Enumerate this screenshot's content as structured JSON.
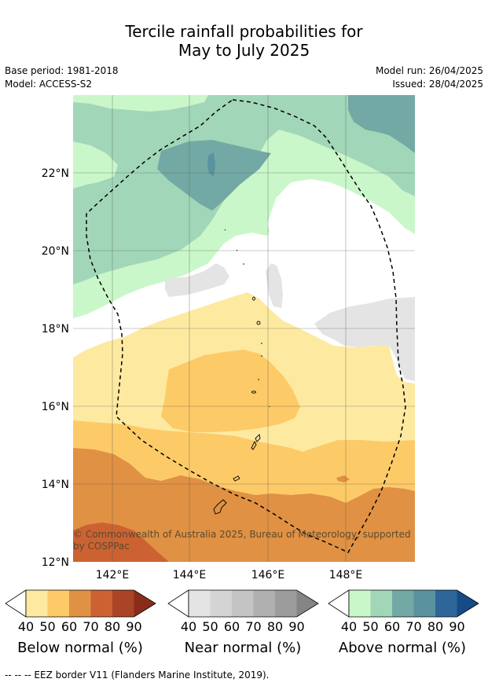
{
  "title": {
    "line1": "Tercile rainfall probabilities for",
    "line2": "May to July 2025"
  },
  "meta": {
    "base_period": "Base period: 1981-2018",
    "model": "Model: ACCESS-S2",
    "model_run": "Model run: 26/04/2025",
    "issued": "Issued: 28/04/2025"
  },
  "map": {
    "lat_labels": [
      "22°N",
      "20°N",
      "18°N",
      "16°N",
      "14°N",
      "12°N"
    ],
    "lon_labels": [
      "142°E",
      "144°E",
      "146°E",
      "148°E"
    ],
    "copyright": [
      "© Commonwealth of Australia 2025, Bureau of Meteorology, supported",
      "by COSPPac"
    ],
    "colors": {
      "below_40": "#fdeaa0",
      "below_50": "#fdca68",
      "below_60": "#e09143",
      "below_70": "#cc6232",
      "below_80": "#a94526",
      "below_90": "#8a2c1b",
      "near_40": "#e4e4e4",
      "near_50": "#d4d4d4",
      "near_60": "#c4c4c4",
      "near_70": "#b0b0b0",
      "near_80": "#9c9c9c",
      "near_90": "#858585",
      "above_40": "#c9f7c9",
      "above_50": "#a2d6b9",
      "above_60": "#73a9a4",
      "above_70": "#5a92a0",
      "above_80": "#2e6699",
      "above_90": "#164c86"
    }
  },
  "colorbars": [
    {
      "label": "Below normal (%)",
      "ticks": [
        "40",
        "50",
        "60",
        "70",
        "80",
        "90"
      ]
    },
    {
      "label": "Near normal (%)",
      "ticks": [
        "40",
        "50",
        "60",
        "70",
        "80",
        "90"
      ]
    },
    {
      "label": "Above normal (%)",
      "ticks": [
        "40",
        "50",
        "60",
        "70",
        "80",
        "90"
      ]
    }
  ],
  "footer": "--  --  -- EEZ border V11 (Flanders Marine Institute, 2019)."
}
